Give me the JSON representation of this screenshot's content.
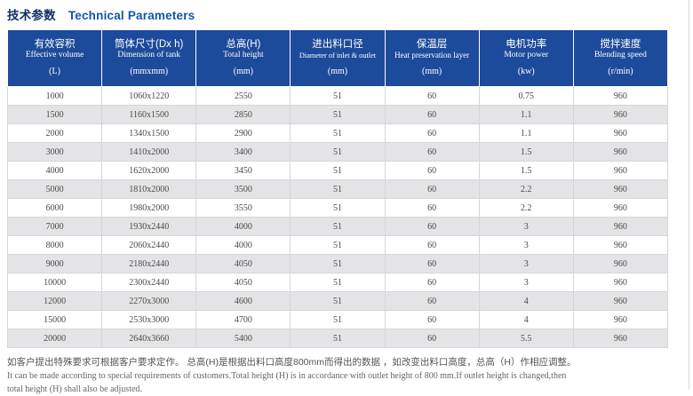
{
  "page": {
    "title_zh": "技术参数",
    "title_en": "Technical Parameters"
  },
  "colors": {
    "header_bg": "#1d4b9c",
    "title_blue": "#1156a7",
    "stripe_gray": "#e4e4e6",
    "cell_border": "#d6d6d8"
  },
  "table": {
    "columns": [
      {
        "zh": "有效容积",
        "en": "Effective volume",
        "unit": "(L)"
      },
      {
        "zh": "筒体尺寸(Dx h)",
        "en": "Dimension of tank",
        "unit": "(mmxmm)"
      },
      {
        "zh": "总高(H)",
        "en": "Total height",
        "unit": "(mm)"
      },
      {
        "zh": "进出料口径",
        "en": "Diameter of inlet & outlet",
        "unit": "(mm)"
      },
      {
        "zh": "保温层",
        "en": "Heat preservation layer",
        "unit": "(mm)"
      },
      {
        "zh": "电机功率",
        "en": "Motor power",
        "unit": "(kw)"
      },
      {
        "zh": "搅拌速度",
        "en": "Blending speed",
        "unit": "(r/min)"
      }
    ],
    "rows": [
      [
        "1000",
        "1060x1220",
        "2550",
        "51",
        "60",
        "0.75",
        "960"
      ],
      [
        "1500",
        "1160x1500",
        "2850",
        "51",
        "60",
        "1.1",
        "960"
      ],
      [
        "2000",
        "1340x1500",
        "2900",
        "51",
        "60",
        "1.1",
        "960"
      ],
      [
        "3000",
        "1410x2000",
        "3400",
        "51",
        "60",
        "1.5",
        "960"
      ],
      [
        "4000",
        "1620x2000",
        "3450",
        "51",
        "60",
        "1.5",
        "960"
      ],
      [
        "5000",
        "1810x2000",
        "3500",
        "51",
        "60",
        "2.2",
        "960"
      ],
      [
        "6000",
        "1980x2000",
        "3550",
        "51",
        "60",
        "2.2",
        "960"
      ],
      [
        "7000",
        "1930x2440",
        "4000",
        "51",
        "60",
        "3",
        "960"
      ],
      [
        "8000",
        "2060x2440",
        "4000",
        "51",
        "60",
        "3",
        "960"
      ],
      [
        "9000",
        "2180x2440",
        "4050",
        "51",
        "60",
        "3",
        "960"
      ],
      [
        "10000",
        "2300x2440",
        "4050",
        "51",
        "60",
        "3",
        "960"
      ],
      [
        "12000",
        "2270x3000",
        "4600",
        "51",
        "60",
        "4",
        "960"
      ],
      [
        "15000",
        "2530x3000",
        "4700",
        "51",
        "60",
        "4",
        "960"
      ],
      [
        "20000",
        "2640x3660",
        "5400",
        "51",
        "60",
        "5.5",
        "960"
      ]
    ]
  },
  "footnote": {
    "zh": "如客户提出特殊要求可根据客户要求定作。 总高(H)是根据出料口高度800mm而得出的数据 ，如改变出料口高度，总高（H）作相应调整。",
    "en_line1": "It can be made according to special requirements of customers.Total height (H) is in accordance with outlet height of 800 mm.If outlet height is changed,then",
    "en_line2": "total height (H) shall also be adjusted."
  }
}
